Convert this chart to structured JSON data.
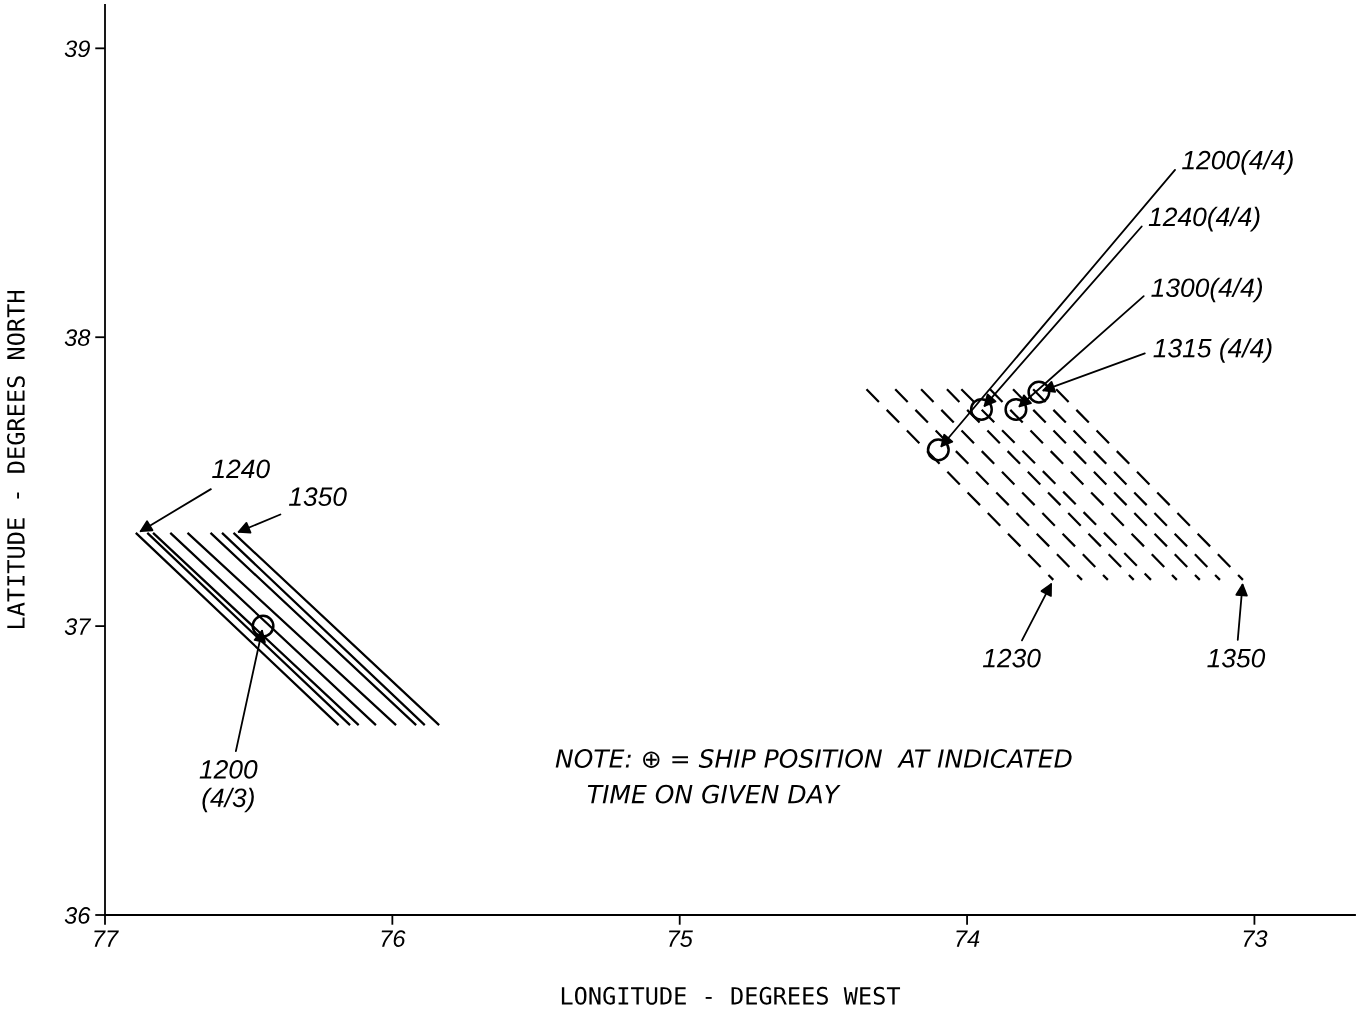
{
  "chart_data": {
    "type": "line",
    "xlabel": "LONGITUDE - DEGREES WEST",
    "ylabel": "LATITUDE - DEGREES NORTH",
    "xlim": [
      77,
      72.65
    ],
    "ylim": [
      36,
      39.15
    ],
    "xticks": [
      77,
      76,
      75,
      74,
      73
    ],
    "yticks": [
      36,
      37,
      38,
      39
    ],
    "grid": false,
    "series": [
      {
        "color": "#000000",
        "line_style": "solid",
        "marker": "none",
        "x": [
          76.89,
          76.19
        ],
        "values": [
          37.32,
          36.66
        ]
      },
      {
        "color": "#000000",
        "line_style": "solid",
        "marker": "none",
        "x": [
          76.85,
          76.15
        ],
        "values": [
          37.32,
          36.66
        ]
      },
      {
        "color": "#000000",
        "line_style": "solid",
        "marker": "none",
        "x": [
          76.83,
          76.12
        ],
        "values": [
          37.32,
          36.66
        ]
      },
      {
        "color": "#000000",
        "line_style": "solid",
        "marker": "none",
        "x": [
          76.77,
          76.06
        ],
        "values": [
          37.32,
          36.66
        ]
      },
      {
        "color": "#000000",
        "line_style": "solid",
        "marker": "none",
        "x": [
          76.71,
          75.99
        ],
        "values": [
          37.32,
          36.66
        ]
      },
      {
        "color": "#000000",
        "line_style": "solid",
        "marker": "none",
        "x": [
          76.63,
          75.92
        ],
        "values": [
          37.32,
          36.66
        ]
      },
      {
        "color": "#000000",
        "line_style": "solid",
        "marker": "none",
        "x": [
          76.59,
          75.89
        ],
        "values": [
          37.32,
          36.66
        ]
      },
      {
        "color": "#000000",
        "line_style": "solid",
        "marker": "none",
        "x": [
          76.55,
          75.84
        ],
        "values": [
          37.32,
          36.66
        ]
      },
      {
        "color": "#000000",
        "line_style": "dashed",
        "marker": "none",
        "x": [
          74.35,
          73.7
        ],
        "values": [
          37.82,
          37.16
        ]
      },
      {
        "color": "#000000",
        "line_style": "dashed",
        "marker": "none",
        "x": [
          74.25,
          73.6
        ],
        "values": [
          37.82,
          37.16
        ]
      },
      {
        "color": "#000000",
        "line_style": "dashed",
        "marker": "none",
        "x": [
          74.16,
          73.51
        ],
        "values": [
          37.82,
          37.16
        ]
      },
      {
        "color": "#000000",
        "line_style": "dashed",
        "marker": "none",
        "x": [
          74.07,
          73.42
        ],
        "values": [
          37.82,
          37.16
        ]
      },
      {
        "color": "#000000",
        "line_style": "dashed",
        "marker": "none",
        "x": [
          74.02,
          73.36
        ],
        "values": [
          37.82,
          37.16
        ]
      },
      {
        "color": "#000000",
        "line_style": "dashed",
        "marker": "none",
        "x": [
          73.92,
          73.27
        ],
        "values": [
          37.82,
          37.16
        ]
      },
      {
        "color": "#000000",
        "line_style": "dashed",
        "marker": "none",
        "x": [
          73.84,
          73.19
        ],
        "values": [
          37.82,
          37.16
        ]
      },
      {
        "color": "#000000",
        "line_style": "dashed",
        "marker": "none",
        "x": [
          73.77,
          73.12
        ],
        "values": [
          37.82,
          37.16
        ]
      },
      {
        "color": "#000000",
        "line_style": "dashed",
        "marker": "none",
        "x": [
          73.69,
          73.04
        ],
        "values": [
          37.82,
          37.16
        ]
      },
      {
        "type": "scatter",
        "color": "#000000",
        "marker": "circle",
        "x": [
          76.45,
          74.1,
          73.95,
          73.83,
          73.75
        ],
        "values": [
          37.0,
          37.61,
          37.75,
          37.75,
          37.81
        ]
      }
    ],
    "annotations": [
      {
        "text": "1240",
        "x": 76.89,
        "y": 37.32
      },
      {
        "text": "1350",
        "x": 76.55,
        "y": 37.32
      },
      {
        "text": "1200\n(4/3)",
        "x": 76.45,
        "y": 37.0
      },
      {
        "text": "1200(4/4)",
        "x": 74.1,
        "y": 37.61
      },
      {
        "text": "1240(4/4)",
        "x": 73.95,
        "y": 37.75
      },
      {
        "text": "1300(4/4)",
        "x": 73.83,
        "y": 37.75
      },
      {
        "text": "1315 (4/4)",
        "x": 73.75,
        "y": 37.81
      },
      {
        "text": "1230",
        "x": 73.7,
        "y": 37.16
      },
      {
        "text": "1350",
        "x": 73.04,
        "y": 37.16
      },
      "NOTE: ⊕ = SHIP POSITION  AT INDICATED\n    TIME ON GIVEN DAY"
    ]
  }
}
